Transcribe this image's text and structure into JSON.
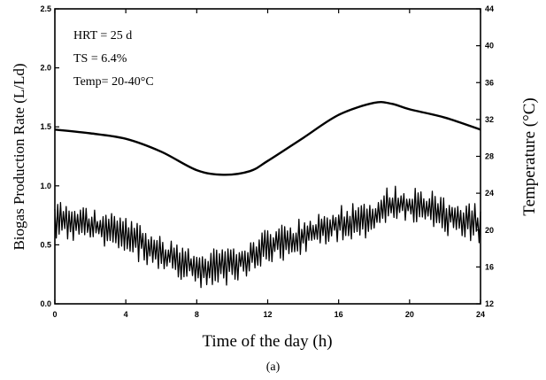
{
  "caption": "(a)",
  "chart_data": {
    "type": "line",
    "xlabel": "Time of the day (h)",
    "ylabel_left": "Biogas Production Rate (L/Ld)",
    "ylabel_right": "Temperature (°C)",
    "xlim": [
      0,
      24
    ],
    "ylim_left": [
      0.0,
      2.5
    ],
    "ylim_right": [
      12,
      44
    ],
    "x_ticks": [
      0,
      4,
      8,
      12,
      16,
      20,
      24
    ],
    "y_left_ticks": [
      "0.0",
      "0.5",
      "1.0",
      "1.5",
      "2.0",
      "2.5"
    ],
    "y_right_ticks": [
      12,
      16,
      20,
      24,
      28,
      32,
      36,
      40,
      44
    ],
    "grid": false,
    "annotations": [
      "HRT  = 25 d",
      "TS    = 6.4%",
      "Temp= 20-40°C"
    ],
    "series": [
      {
        "axis": "right",
        "style": "smooth",
        "x": [
          0,
          2,
          4,
          6,
          8,
          9.5,
          11,
          12,
          14,
          16,
          18,
          19,
          20,
          22,
          24
        ],
        "y": [
          30.9,
          30.5,
          29.9,
          28.5,
          26.5,
          26.0,
          26.4,
          27.5,
          30.0,
          32.5,
          33.8,
          33.7,
          33.1,
          32.2,
          30.9
        ]
      },
      {
        "axis": "left",
        "style": "noisy",
        "x": [
          0,
          1,
          2,
          3,
          4,
          5,
          6,
          7,
          8,
          9,
          10,
          11,
          12,
          13,
          14,
          15,
          16,
          17,
          18,
          19,
          20,
          21,
          22,
          23,
          24
        ],
        "y": [
          0.72,
          0.7,
          0.66,
          0.62,
          0.6,
          0.5,
          0.43,
          0.37,
          0.31,
          0.3,
          0.33,
          0.4,
          0.48,
          0.52,
          0.57,
          0.62,
          0.68,
          0.7,
          0.76,
          0.85,
          0.84,
          0.82,
          0.76,
          0.72,
          0.65
        ]
      }
    ]
  }
}
